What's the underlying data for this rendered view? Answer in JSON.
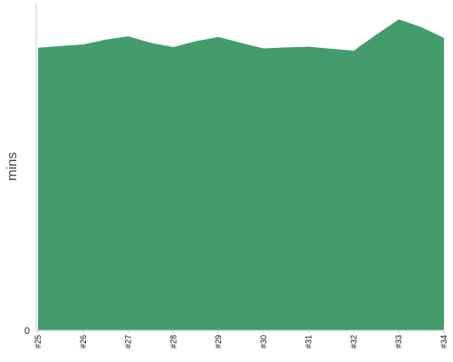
{
  "chart_data": {
    "type": "area",
    "categories": [
      "#25",
      "#25.5",
      "#26",
      "#26.5",
      "#27",
      "#27.5",
      "#28",
      "#28.5",
      "#29",
      "#29.5",
      "#30",
      "#30.5",
      "#31",
      "#31.5",
      "#32",
      "#32.5",
      "#33",
      "#33.5",
      "#34"
    ],
    "x_tick_labels": [
      "#25",
      "#26",
      "#27",
      "#28",
      "#29",
      "#30",
      "#31",
      "#32",
      "#33",
      "#34"
    ],
    "values": [
      86.5,
      87.0,
      87.5,
      89.0,
      90.0,
      88.0,
      86.7,
      88.5,
      89.8,
      88.0,
      86.3,
      86.6,
      86.8,
      86.2,
      85.6,
      90.5,
      95.2,
      92.8,
      89.5
    ],
    "ylabel": "mins",
    "y_tick_labels": [
      "0"
    ],
    "ylim": [
      0,
      100
    ],
    "color": "#449c6c"
  }
}
